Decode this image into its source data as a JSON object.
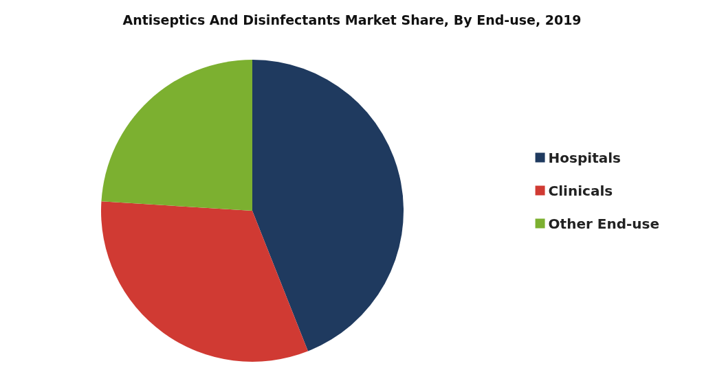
{
  "chart_data": {
    "type": "pie",
    "title": "Antiseptics And Disinfectants Market Share, By End-use, 2019",
    "categories": [
      "Hospitals",
      "Clinicals",
      "Other End-use"
    ],
    "values": [
      44,
      32,
      24
    ],
    "colors": [
      "#1f3a5f",
      "#d03a33",
      "#7cb030"
    ],
    "legend": "right"
  }
}
